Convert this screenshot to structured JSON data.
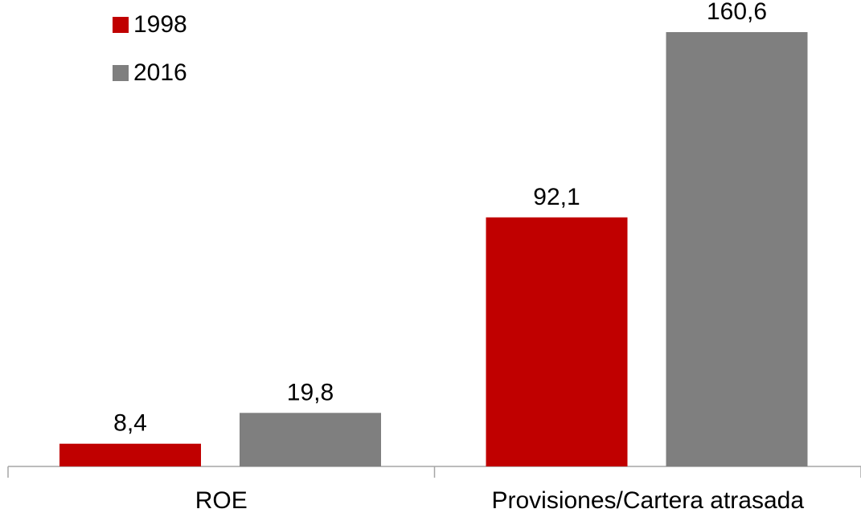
{
  "chart_data": {
    "type": "bar",
    "categories": [
      "ROE",
      "Provisiones/Cartera atrasada"
    ],
    "series": [
      {
        "name": "1998",
        "color": "#c00000",
        "values": [
          8.4,
          92.1
        ],
        "labels": [
          "8,4",
          "92,1"
        ]
      },
      {
        "name": "2016",
        "color": "#7f7f7f",
        "values": [
          19.8,
          160.6
        ],
        "labels": [
          "19,8",
          "160,6"
        ]
      }
    ],
    "legend_position": "top-left",
    "grid": false
  }
}
